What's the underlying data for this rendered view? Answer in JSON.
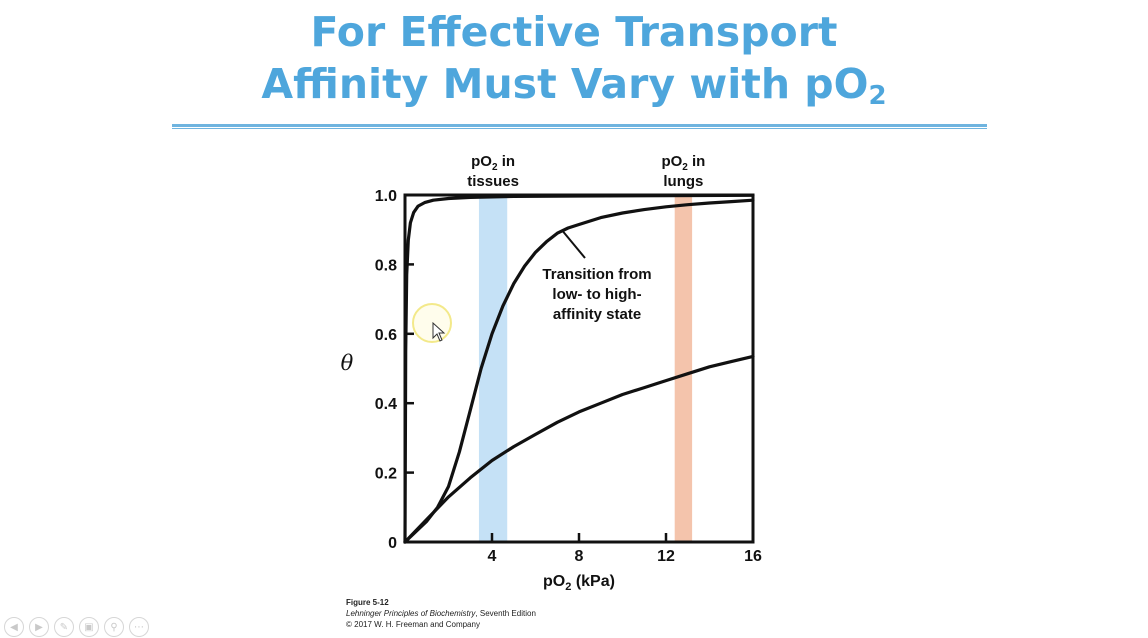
{
  "slide": {
    "title_line1": "For Effective Transport",
    "title_line2_main": "Affinity Must Vary with pO",
    "title_line2_sub": "2"
  },
  "figure": {
    "number": "Figure 5-12",
    "book_title": "Lehninger Principles of Biochemistry",
    "book_edition": ", Seventh Edition",
    "copyright": "© 2017 W. H. Freeman and Company"
  },
  "chart_data": {
    "type": "line",
    "xlabel_main": "pO",
    "xlabel_sub": "2",
    "xlabel_unit": " (kPa)",
    "ylabel": "θ",
    "xlim": [
      0,
      16
    ],
    "ylim": [
      0,
      1.0
    ],
    "x_ticks": [
      0,
      4,
      8,
      12,
      16
    ],
    "x_tick_labels": [
      "",
      "4",
      "8",
      "12",
      "16"
    ],
    "y_ticks": [
      0,
      0.2,
      0.4,
      0.6,
      0.8,
      1.0
    ],
    "y_tick_labels": [
      "0",
      "0.2",
      "0.4",
      "0.6",
      "0.8",
      "1.0"
    ],
    "grid": false,
    "bands": [
      {
        "x_start": 3.4,
        "x_end": 4.7,
        "color": "#c5e1f6",
        "label_top": "pO",
        "label_sub": "2",
        "label_rest": " in",
        "label_line2": "tissues"
      },
      {
        "x_start": 12.4,
        "x_end": 13.2,
        "color": "#f4c4ac",
        "label_top": "pO",
        "label_sub": "2",
        "label_rest": " in",
        "label_line2": "lungs"
      }
    ],
    "series": [
      {
        "x": [
          0,
          0.03,
          0.08,
          0.15,
          0.25,
          0.4,
          0.6,
          0.9,
          1.3,
          2,
          3,
          5,
          8,
          12,
          16
        ],
        "values": [
          0,
          0.55,
          0.77,
          0.87,
          0.92,
          0.95,
          0.968,
          0.978,
          0.985,
          0.99,
          0.993,
          0.996,
          0.997,
          0.998,
          0.999
        ]
      },
      {
        "x": [
          0,
          0.5,
          1,
          1.5,
          2,
          2.5,
          3,
          3.5,
          4,
          4.5,
          5,
          5.5,
          6,
          6.5,
          7,
          7.5,
          8,
          9,
          10,
          11,
          12,
          13,
          14,
          15,
          16
        ],
        "values": [
          0,
          0.03,
          0.06,
          0.1,
          0.16,
          0.26,
          0.38,
          0.5,
          0.6,
          0.68,
          0.745,
          0.795,
          0.835,
          0.865,
          0.89,
          0.905,
          0.915,
          0.935,
          0.948,
          0.958,
          0.966,
          0.972,
          0.977,
          0.981,
          0.985
        ]
      },
      {
        "x": [
          0,
          1,
          2,
          3,
          4,
          5,
          6,
          7,
          8,
          9,
          10,
          11,
          12,
          13,
          14,
          15,
          16
        ],
        "values": [
          0,
          0.065,
          0.13,
          0.185,
          0.235,
          0.275,
          0.31,
          0.345,
          0.375,
          0.4,
          0.425,
          0.445,
          0.465,
          0.485,
          0.505,
          0.52,
          0.535
        ]
      }
    ],
    "annotation": {
      "lines": [
        "Transition from",
        "low- to high-",
        "affinity state"
      ],
      "point_x": 7.2,
      "point_y": 0.9
    }
  },
  "navigation": {
    "icons": [
      "prev-icon",
      "next-icon",
      "pen-icon",
      "slides-icon",
      "zoom-icon",
      "more-icon"
    ]
  }
}
